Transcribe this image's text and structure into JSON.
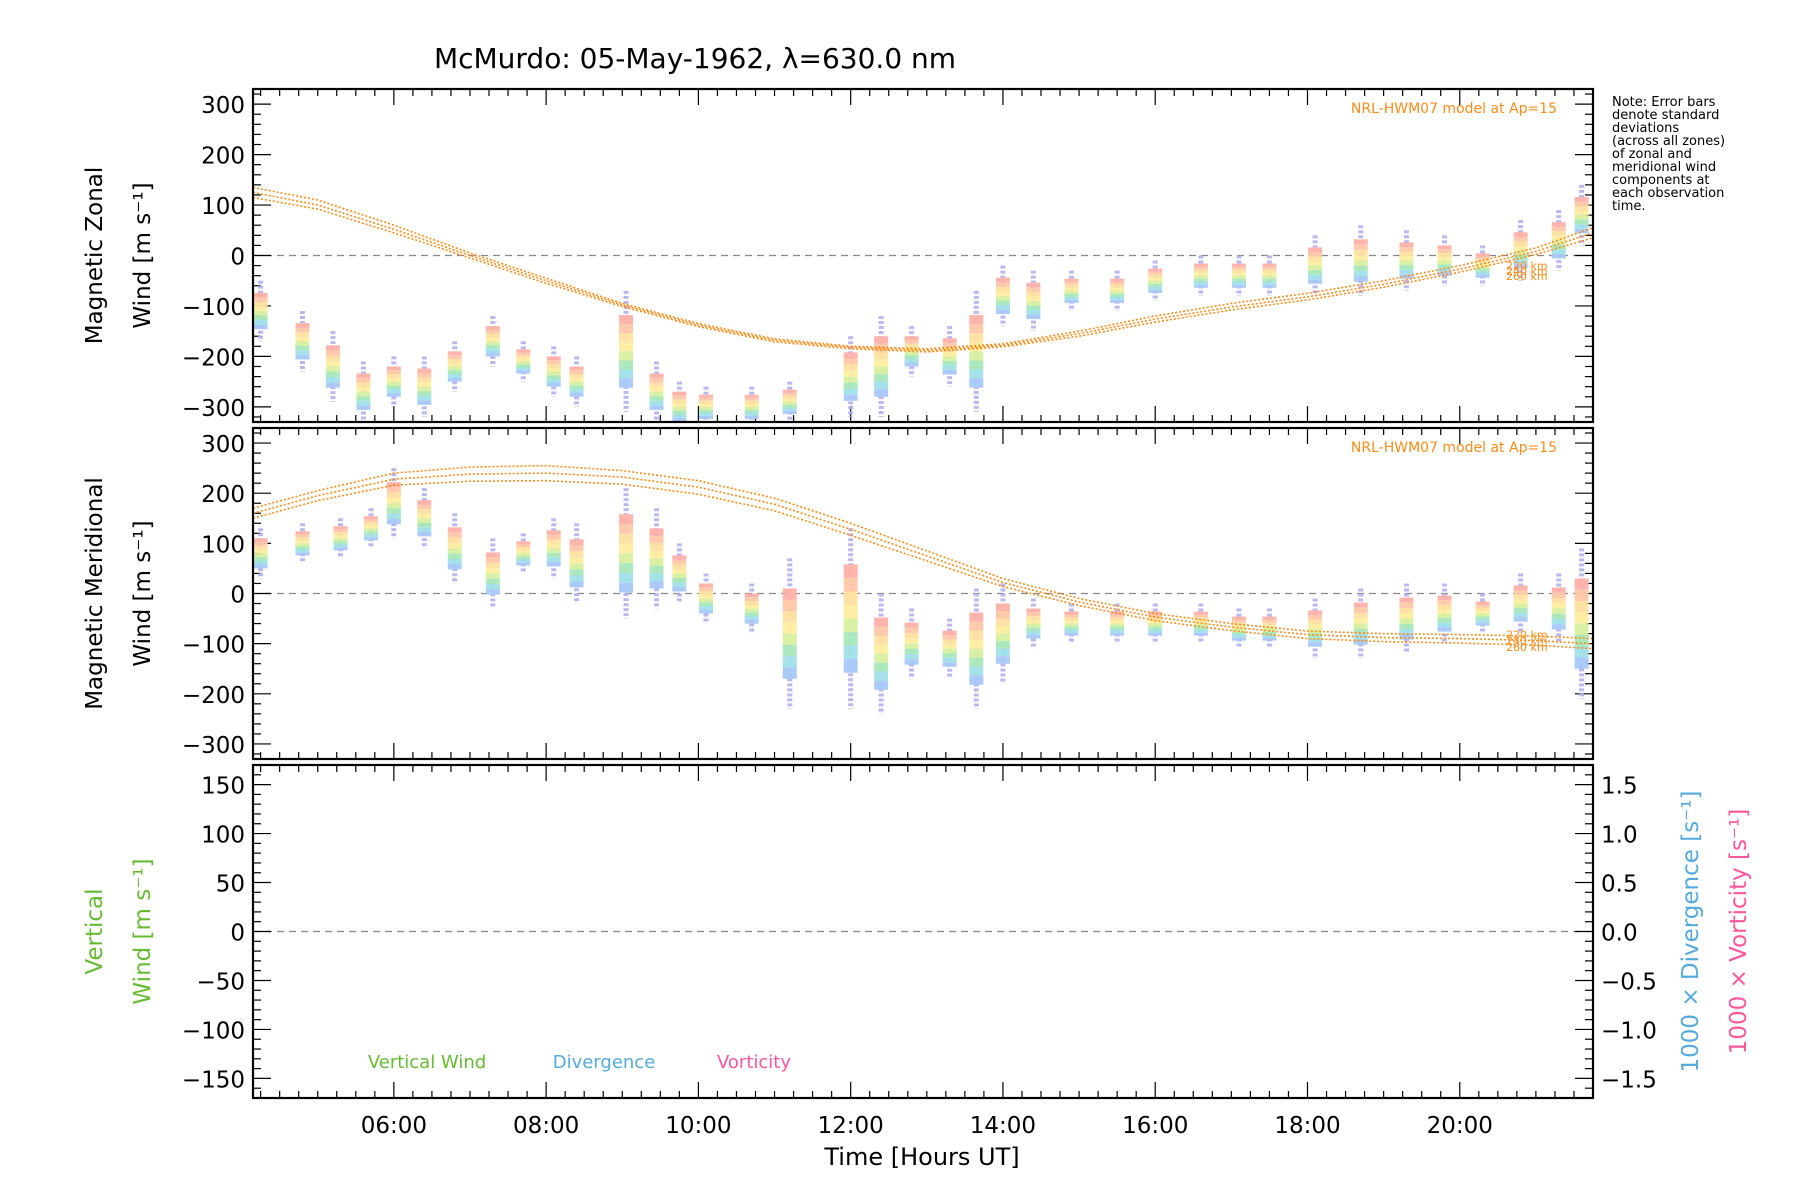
{
  "title": "McMurdo: 05-May-1962, λ=630.0 nm",
  "note_lines": [
    "Note: Error bars",
    "denote standard",
    "deviations",
    "(across all zones)",
    "of zonal and",
    "meridional wind",
    "components at",
    "each observation",
    "time."
  ],
  "colors": {
    "model": "#ff8c1a",
    "vertical": "#66bb33",
    "divergence": "#55aadd",
    "vorticity": "#ff5599",
    "zero_line": "#888888",
    "error_bar": "#b4b0ee"
  },
  "chart_data": [
    {
      "type": "scatter",
      "panel": "zonal",
      "ylabel": [
        "Magnetic Zonal",
        "Wind [m s⁻¹]"
      ],
      "ylim": [
        -330,
        330
      ],
      "yticks": [
        300,
        200,
        100,
        0,
        -100,
        -200,
        -300
      ],
      "xlim": [
        4.15,
        21.75
      ],
      "model_label": "NRL-HWM07 model at Ap=15",
      "model_altitudes": [
        "220 km",
        "240 km",
        "260 km"
      ],
      "model_curves": [
        {
          "name": "220 km",
          "x": [
            4.15,
            5,
            6,
            7,
            8,
            9,
            10,
            11,
            12,
            13,
            14,
            15,
            16,
            17,
            18,
            19,
            20,
            21,
            21.75
          ],
          "y": [
            135,
            110,
            60,
            5,
            -45,
            -95,
            -135,
            -165,
            -180,
            -185,
            -175,
            -150,
            -120,
            -95,
            -75,
            -50,
            -20,
            15,
            55
          ]
        },
        {
          "name": "240 km",
          "x": [
            4.15,
            5,
            6,
            7,
            8,
            9,
            10,
            11,
            12,
            13,
            14,
            15,
            16,
            17,
            18,
            19,
            20,
            21,
            21.75
          ],
          "y": [
            125,
            100,
            52,
            0,
            -50,
            -98,
            -138,
            -168,
            -182,
            -188,
            -178,
            -155,
            -126,
            -102,
            -82,
            -57,
            -27,
            8,
            45
          ]
        },
        {
          "name": "260 km",
          "x": [
            4.15,
            5,
            6,
            7,
            8,
            9,
            10,
            11,
            12,
            13,
            14,
            15,
            16,
            17,
            18,
            19,
            20,
            21,
            21.75
          ],
          "y": [
            115,
            92,
            45,
            -5,
            -55,
            -101,
            -141,
            -171,
            -185,
            -191,
            -181,
            -160,
            -132,
            -108,
            -88,
            -63,
            -33,
            2,
            35
          ]
        }
      ],
      "observations": [
        {
          "x": 4.25,
          "y": -110,
          "err": 60
        },
        {
          "x": 4.8,
          "y": -170,
          "err": 60
        },
        {
          "x": 5.2,
          "y": -220,
          "err": 70
        },
        {
          "x": 5.6,
          "y": -270,
          "err": 60
        },
        {
          "x": 6.0,
          "y": -250,
          "err": 50
        },
        {
          "x": 6.4,
          "y": -260,
          "err": 60
        },
        {
          "x": 6.8,
          "y": -220,
          "err": 50
        },
        {
          "x": 7.3,
          "y": -170,
          "err": 50
        },
        {
          "x": 7.7,
          "y": -210,
          "err": 40
        },
        {
          "x": 8.1,
          "y": -230,
          "err": 50
        },
        {
          "x": 8.4,
          "y": -250,
          "err": 50
        },
        {
          "x": 9.05,
          "y": -190,
          "err": 120
        },
        {
          "x": 9.45,
          "y": -270,
          "err": 60
        },
        {
          "x": 9.75,
          "y": -300,
          "err": 50
        },
        {
          "x": 10.1,
          "y": -300,
          "err": 40
        },
        {
          "x": 10.7,
          "y": -300,
          "err": 40
        },
        {
          "x": 11.2,
          "y": -290,
          "err": 40
        },
        {
          "x": 12.0,
          "y": -240,
          "err": 80
        },
        {
          "x": 12.4,
          "y": -220,
          "err": 100
        },
        {
          "x": 12.8,
          "y": -190,
          "err": 50
        },
        {
          "x": 13.3,
          "y": -200,
          "err": 60
        },
        {
          "x": 13.65,
          "y": -190,
          "err": 120
        },
        {
          "x": 14.0,
          "y": -80,
          "err": 60
        },
        {
          "x": 14.4,
          "y": -90,
          "err": 60
        },
        {
          "x": 14.9,
          "y": -70,
          "err": 40
        },
        {
          "x": 15.5,
          "y": -70,
          "err": 40
        },
        {
          "x": 16.0,
          "y": -50,
          "err": 40
        },
        {
          "x": 16.6,
          "y": -40,
          "err": 40
        },
        {
          "x": 17.1,
          "y": -40,
          "err": 40
        },
        {
          "x": 17.5,
          "y": -40,
          "err": 40
        },
        {
          "x": 18.1,
          "y": -20,
          "err": 60
        },
        {
          "x": 18.7,
          "y": -10,
          "err": 70
        },
        {
          "x": 19.3,
          "y": -10,
          "err": 60
        },
        {
          "x": 19.8,
          "y": -10,
          "err": 50
        },
        {
          "x": 20.3,
          "y": -20,
          "err": 40
        },
        {
          "x": 20.8,
          "y": 10,
          "err": 60
        },
        {
          "x": 21.3,
          "y": 30,
          "err": 60
        },
        {
          "x": 21.6,
          "y": 80,
          "err": 60
        }
      ]
    },
    {
      "type": "scatter",
      "panel": "meridional",
      "ylabel": [
        "Magnetic Meridional",
        "Wind [m s⁻¹]"
      ],
      "ylim": [
        -330,
        330
      ],
      "yticks": [
        300,
        200,
        100,
        0,
        -100,
        -200,
        -300
      ],
      "xlim": [
        4.15,
        21.75
      ],
      "model_label": "NRL-HWM07 model at Ap=15",
      "model_altitudes": [
        "220 km",
        "240 km",
        "260 km"
      ],
      "model_curves": [
        {
          "name": "220 km",
          "x": [
            4.15,
            5,
            6,
            7,
            8,
            9,
            10,
            11,
            12,
            13,
            14,
            15,
            16,
            17,
            18,
            19,
            20,
            21,
            21.75
          ],
          "y": [
            170,
            205,
            240,
            252,
            255,
            245,
            225,
            190,
            140,
            85,
            30,
            -10,
            -40,
            -60,
            -75,
            -80,
            -82,
            -85,
            -90
          ]
        },
        {
          "name": "240 km",
          "x": [
            4.15,
            5,
            6,
            7,
            8,
            9,
            10,
            11,
            12,
            13,
            14,
            15,
            16,
            17,
            18,
            19,
            20,
            21,
            21.75
          ],
          "y": [
            160,
            195,
            228,
            238,
            240,
            232,
            212,
            178,
            128,
            75,
            22,
            -17,
            -47,
            -67,
            -82,
            -88,
            -90,
            -94,
            -100
          ]
        },
        {
          "name": "260 km",
          "x": [
            4.15,
            5,
            6,
            7,
            8,
            9,
            10,
            11,
            12,
            13,
            14,
            15,
            16,
            17,
            18,
            19,
            20,
            21,
            21.75
          ],
          "y": [
            150,
            185,
            216,
            224,
            225,
            218,
            198,
            165,
            116,
            65,
            14,
            -24,
            -54,
            -74,
            -90,
            -96,
            -99,
            -103,
            -110
          ]
        }
      ],
      "observations": [
        {
          "x": 4.25,
          "y": 80,
          "err": 50
        },
        {
          "x": 4.8,
          "y": 100,
          "err": 40
        },
        {
          "x": 5.3,
          "y": 110,
          "err": 40
        },
        {
          "x": 5.7,
          "y": 130,
          "err": 40
        },
        {
          "x": 6.0,
          "y": 180,
          "err": 70
        },
        {
          "x": 6.4,
          "y": 150,
          "err": 60
        },
        {
          "x": 6.8,
          "y": 90,
          "err": 70
        },
        {
          "x": 7.3,
          "y": 40,
          "err": 70
        },
        {
          "x": 7.7,
          "y": 80,
          "err": 40
        },
        {
          "x": 8.1,
          "y": 90,
          "err": 60
        },
        {
          "x": 8.4,
          "y": 60,
          "err": 80
        },
        {
          "x": 9.05,
          "y": 80,
          "err": 130
        },
        {
          "x": 9.45,
          "y": 70,
          "err": 100
        },
        {
          "x": 9.75,
          "y": 40,
          "err": 60
        },
        {
          "x": 10.1,
          "y": -10,
          "err": 50
        },
        {
          "x": 10.7,
          "y": -30,
          "err": 50
        },
        {
          "x": 11.2,
          "y": -80,
          "err": 150
        },
        {
          "x": 12.0,
          "y": -50,
          "err": 180
        },
        {
          "x": 12.4,
          "y": -120,
          "err": 120
        },
        {
          "x": 12.8,
          "y": -100,
          "err": 70
        },
        {
          "x": 13.3,
          "y": -110,
          "err": 60
        },
        {
          "x": 13.65,
          "y": -110,
          "err": 120
        },
        {
          "x": 14.0,
          "y": -80,
          "err": 100
        },
        {
          "x": 14.4,
          "y": -60,
          "err": 50
        },
        {
          "x": 14.9,
          "y": -60,
          "err": 40
        },
        {
          "x": 15.5,
          "y": -60,
          "err": 40
        },
        {
          "x": 16.0,
          "y": -60,
          "err": 40
        },
        {
          "x": 16.6,
          "y": -60,
          "err": 40
        },
        {
          "x": 17.1,
          "y": -70,
          "err": 40
        },
        {
          "x": 17.5,
          "y": -70,
          "err": 40
        },
        {
          "x": 18.1,
          "y": -70,
          "err": 60
        },
        {
          "x": 18.7,
          "y": -60,
          "err": 70
        },
        {
          "x": 19.3,
          "y": -50,
          "err": 70
        },
        {
          "x": 19.8,
          "y": -40,
          "err": 60
        },
        {
          "x": 20.3,
          "y": -40,
          "err": 40
        },
        {
          "x": 20.8,
          "y": -20,
          "err": 60
        },
        {
          "x": 21.3,
          "y": -30,
          "err": 70
        },
        {
          "x": 21.6,
          "y": -60,
          "err": 150
        }
      ]
    },
    {
      "type": "line",
      "panel": "vertical",
      "ylabel": [
        "Vertical",
        "Wind [m s⁻¹]"
      ],
      "ylim": [
        -170,
        170
      ],
      "yticks": [
        150,
        100,
        50,
        0,
        -50,
        -100,
        -150
      ],
      "y2label_divergence": "1000 × Divergence [s⁻¹]",
      "y2label_vorticity": "1000 × Vorticity [s⁻¹]",
      "y2lim": [
        -1.7,
        1.7
      ],
      "y2ticks": [
        "1.5",
        "1.0",
        "0.5",
        "0.0",
        "-0.5",
        "-1.0",
        "-1.5"
      ],
      "xlim": [
        4.15,
        21.75
      ],
      "xlabel": "Time [Hours UT]",
      "xticks": [
        {
          "x": 6,
          "label": "06:00"
        },
        {
          "x": 8,
          "label": "08:00"
        },
        {
          "x": 10,
          "label": "10:00"
        },
        {
          "x": 12,
          "label": "12:00"
        },
        {
          "x": 14,
          "label": "14:00"
        },
        {
          "x": 16,
          "label": "16:00"
        },
        {
          "x": 18,
          "label": "18:00"
        },
        {
          "x": 20,
          "label": "20:00"
        }
      ],
      "legend": [
        "Vertical Wind",
        "Divergence",
        "Vorticity"
      ],
      "series": []
    }
  ]
}
